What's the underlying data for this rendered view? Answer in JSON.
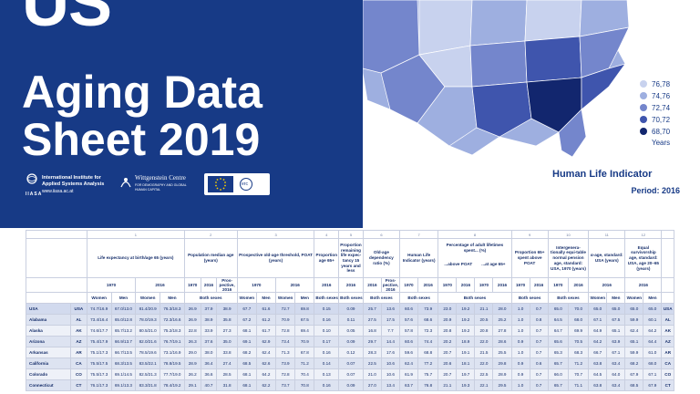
{
  "cover": {
    "title_us": "US",
    "title_line1": "Aging Data",
    "title_line2": "Sheet 2019"
  },
  "logos": {
    "iiasa_name": "International Institute for Applied Systems Analysis",
    "iiasa_url": "www.iiasa.ac.at",
    "iiasa_acronym": "IIASA",
    "wittgenstein": "Wittgenstein Centre",
    "wittgenstein_sub": "FOR DEMOGRAPHY AND GLOBAL HUMAN CAPITAL",
    "erc": "erc"
  },
  "map": {
    "legend": [
      "76,78",
      "74,76",
      "72,74",
      "70,72",
      "68,70"
    ],
    "legend_colors": [
      "#c8d2ee",
      "#9eafe0",
      "#7486cc",
      "#3f55ad",
      "#12266e"
    ],
    "years_label": "Years",
    "indicator_title": "Human Life Indicator",
    "period": "Period: 2016"
  },
  "table": {
    "col_numbers": [
      "1",
      "2",
      "3",
      "4",
      "5",
      "6",
      "7",
      "8",
      "9",
      "10",
      "11",
      "12"
    ],
    "headers": {
      "life_exp": "Life expectancy at birth/age 65 (years)",
      "median_age": "Population median age (years)",
      "poat": "Prospective old-age threshold, POAT (years)",
      "prop65": "Proportion age 65+",
      "prop_remaining": "Proportion remaining life expec-tancy 15 years and less",
      "old_age": "Old-age dependency ratio (%)",
      "hli": "Human Life Indicator (years)",
      "pct_lifetimes": "Percentage of adult lifetimes spent... (%)",
      "above_poat": "...above POAT",
      "at_age65": "...at age 65+",
      "prop65_poat": "Proportion 65+ spent above POAT",
      "intergen": "Intergenera-tionally equi-table normal pension age, standard: USA, 1970 (years)",
      "alpha_age": "α-age, standard: USA (years)",
      "equal_surv": "Equal survivorship age, standard: USA, age 20–65 (years)"
    },
    "years": {
      "y1970": "1970",
      "y2016": "2016",
      "prospective": "Pros-pective, 2016"
    },
    "sex": {
      "women": "Women",
      "men": "Men",
      "both": "Both sexes"
    },
    "rows": [
      {
        "state": "USA",
        "abbr": "USA",
        "v": [
          "74.7/16.9",
          "67.0/13.0",
          "81.4/20.9",
          "76.3/18.3",
          "26.9",
          "37.9",
          "38.9",
          "67.7",
          "61.6",
          "72.7",
          "69.8",
          "0.15",
          "0.09",
          "25.7",
          "13.6",
          "60.6",
          "73.9",
          "23.0",
          "19.2",
          "21.1",
          "28.0",
          "1.0",
          "0.7",
          "65.0",
          "70.0",
          "65.0",
          "65.0",
          "65.0",
          "65.0"
        ]
      },
      {
        "state": "Alabama",
        "abbr": "AL",
        "v": [
          "73.4/16.4",
          "65.0/12.8",
          "78.0/19.3",
          "72.3/16.6",
          "26.9",
          "38.9",
          "35.8",
          "67.2",
          "61.2",
          "70.9",
          "67.5",
          "0.16",
          "0.11",
          "27.5",
          "17.5",
          "57.6",
          "68.6",
          "20.9",
          "19.2",
          "20.5",
          "25.2",
          "1.0",
          "0.8",
          "64.5",
          "68.0",
          "67.1",
          "67.5",
          "59.9",
          "60.1"
        ]
      },
      {
        "state": "Alaska",
        "abbr": "AK",
        "v": [
          "74.6/17.7",
          "65.7/13.2",
          "80.5/21.0",
          "75.2/18.3",
          "22.8",
          "33.9",
          "27.3",
          "68.1",
          "61.7",
          "72.8",
          "69.4",
          "0.10",
          "0.05",
          "16.8",
          "7.7",
          "57.8",
          "72.3",
          "20.8",
          "19.2",
          "20.8",
          "27.8",
          "1.0",
          "0.7",
          "64.7",
          "69.9",
          "64.9",
          "65.1",
          "62.4",
          "64.2"
        ]
      },
      {
        "state": "Arizona",
        "abbr": "AZ",
        "v": [
          "75.4/17.9",
          "66.9/13.7",
          "82.0/21.6",
          "76.7/19.1",
          "26.3",
          "37.6",
          "35.0",
          "69.1",
          "62.9",
          "73.4",
          "70.9",
          "0.17",
          "0.09",
          "29.7",
          "14.4",
          "60.6",
          "74.4",
          "20.2",
          "18.9",
          "22.0",
          "28.6",
          "0.9",
          "0.7",
          "65.6",
          "70.5",
          "64.2",
          "63.9",
          "65.1",
          "64.4"
        ]
      },
      {
        "state": "Arkansas",
        "abbr": "AR",
        "v": [
          "75.1/17.3",
          "66.7/13.5",
          "78.5/19.6",
          "73.1/16.9",
          "29.0",
          "38.0",
          "33.8",
          "68.2",
          "62.4",
          "71.3",
          "67.8",
          "0.16",
          "0.12",
          "28.3",
          "17.6",
          "59.6",
          "68.8",
          "20.7",
          "19.1",
          "21.5",
          "25.5",
          "1.0",
          "0.7",
          "65.3",
          "68.3",
          "66.7",
          "67.1",
          "59.9",
          "61.0"
        ]
      },
      {
        "state": "California",
        "abbr": "CA",
        "v": [
          "75.5/17.5",
          "68.3/13.5",
          "83.5/22.1",
          "78.8/19.5",
          "28.9",
          "36.4",
          "27.4",
          "68.5",
          "62.6",
          "73.9",
          "71.2",
          "0.14",
          "0.07",
          "22.5",
          "10.6",
          "62.4",
          "77.2",
          "20.6",
          "18.1",
          "22.0",
          "29.8",
          "0.9",
          "0.6",
          "65.7",
          "71.2",
          "63.8",
          "63.4",
          "68.2",
          "68.0"
        ]
      },
      {
        "state": "Colorado",
        "abbr": "CO",
        "v": [
          "75.5/17.3",
          "69.1/14.5",
          "82.5/21.3",
          "77.7/19.0",
          "26.2",
          "36.6",
          "28.5",
          "68.1",
          "64.2",
          "72.8",
          "70.4",
          "0.13",
          "0.07",
          "21.0",
          "10.6",
          "61.9",
          "75.7",
          "20.7",
          "19.7",
          "22.5",
          "28.9",
          "0.9",
          "0.7",
          "66.0",
          "70.7",
          "64.5",
          "64.0",
          "67.9",
          "67.1"
        ]
      },
      {
        "state": "Connecticut",
        "abbr": "CT",
        "v": [
          "76.1/17.3",
          "69.1/13.3",
          "83.3/21.8",
          "78.4/19.2",
          "29.1",
          "40.7",
          "31.8",
          "68.1",
          "62.2",
          "73.7",
          "70.8",
          "0.16",
          "0.09",
          "27.0",
          "13.4",
          "63.7",
          "76.8",
          "21.1",
          "19.3",
          "22.1",
          "29.5",
          "1.0",
          "0.7",
          "65.7",
          "71.1",
          "63.8",
          "63.4",
          "68.5",
          "67.9"
        ]
      }
    ]
  }
}
